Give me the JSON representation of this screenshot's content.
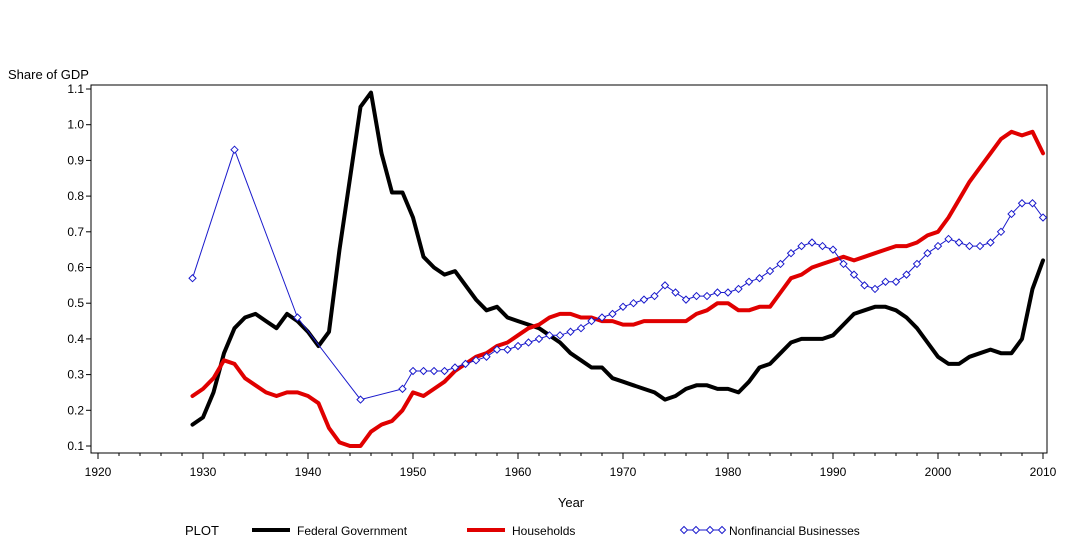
{
  "chart_data": {
    "type": "line",
    "title": "",
    "ylabel": "Share of GDP",
    "xlabel": "Year",
    "xlim": [
      1920,
      2010
    ],
    "ylim": [
      0.1,
      1.1
    ],
    "x_ticks": [
      "1920",
      "1930",
      "1940",
      "1950",
      "1960",
      "1970",
      "1980",
      "1990",
      "2000",
      "2010"
    ],
    "y_ticks": [
      "0.1",
      "0.2",
      "0.3",
      "0.4",
      "0.5",
      "0.6",
      "0.7",
      "0.8",
      "0.9",
      "1.0",
      "1.1"
    ],
    "legend_title": "PLOT",
    "legend_position": "bottom",
    "series": [
      {
        "name": "Federal Government",
        "color": "#000000",
        "marker": "none",
        "points": [
          [
            1929,
            0.16
          ],
          [
            1930,
            0.18
          ],
          [
            1931,
            0.25
          ],
          [
            1932,
            0.36
          ],
          [
            1933,
            0.43
          ],
          [
            1934,
            0.46
          ],
          [
            1935,
            0.47
          ],
          [
            1936,
            0.45
          ],
          [
            1937,
            0.43
          ],
          [
            1938,
            0.47
          ],
          [
            1939,
            0.45
          ],
          [
            1940,
            0.42
          ],
          [
            1941,
            0.38
          ],
          [
            1942,
            0.42
          ],
          [
            1943,
            0.65
          ],
          [
            1944,
            0.85
          ],
          [
            1945,
            1.05
          ],
          [
            1946,
            1.09
          ],
          [
            1947,
            0.92
          ],
          [
            1948,
            0.81
          ],
          [
            1949,
            0.81
          ],
          [
            1950,
            0.74
          ],
          [
            1951,
            0.63
          ],
          [
            1952,
            0.6
          ],
          [
            1953,
            0.58
          ],
          [
            1954,
            0.59
          ],
          [
            1955,
            0.55
          ],
          [
            1956,
            0.51
          ],
          [
            1957,
            0.48
          ],
          [
            1958,
            0.49
          ],
          [
            1959,
            0.46
          ],
          [
            1960,
            0.45
          ],
          [
            1961,
            0.44
          ],
          [
            1962,
            0.43
          ],
          [
            1963,
            0.41
          ],
          [
            1964,
            0.39
          ],
          [
            1965,
            0.36
          ],
          [
            1966,
            0.34
          ],
          [
            1967,
            0.32
          ],
          [
            1968,
            0.32
          ],
          [
            1969,
            0.29
          ],
          [
            1970,
            0.28
          ],
          [
            1971,
            0.27
          ],
          [
            1972,
            0.26
          ],
          [
            1973,
            0.25
          ],
          [
            1974,
            0.23
          ],
          [
            1975,
            0.24
          ],
          [
            1976,
            0.26
          ],
          [
            1977,
            0.27
          ],
          [
            1978,
            0.27
          ],
          [
            1979,
            0.26
          ],
          [
            1980,
            0.26
          ],
          [
            1981,
            0.25
          ],
          [
            1982,
            0.28
          ],
          [
            1983,
            0.32
          ],
          [
            1984,
            0.33
          ],
          [
            1985,
            0.36
          ],
          [
            1986,
            0.39
          ],
          [
            1987,
            0.4
          ],
          [
            1988,
            0.4
          ],
          [
            1989,
            0.4
          ],
          [
            1990,
            0.41
          ],
          [
            1991,
            0.44
          ],
          [
            1992,
            0.47
          ],
          [
            1993,
            0.48
          ],
          [
            1994,
            0.49
          ],
          [
            1995,
            0.49
          ],
          [
            1996,
            0.48
          ],
          [
            1997,
            0.46
          ],
          [
            1998,
            0.43
          ],
          [
            1999,
            0.39
          ],
          [
            2000,
            0.35
          ],
          [
            2001,
            0.33
          ],
          [
            2002,
            0.33
          ],
          [
            2003,
            0.35
          ],
          [
            2004,
            0.36
          ],
          [
            2005,
            0.37
          ],
          [
            2006,
            0.36
          ],
          [
            2007,
            0.36
          ],
          [
            2008,
            0.4
          ],
          [
            2009,
            0.54
          ],
          [
            2010,
            0.62
          ]
        ]
      },
      {
        "name": "Households",
        "color": "#e00000",
        "marker": "none",
        "points": [
          [
            1929,
            0.24
          ],
          [
            1930,
            0.26
          ],
          [
            1931,
            0.29
          ],
          [
            1932,
            0.34
          ],
          [
            1933,
            0.33
          ],
          [
            1934,
            0.29
          ],
          [
            1935,
            0.27
          ],
          [
            1936,
            0.25
          ],
          [
            1937,
            0.24
          ],
          [
            1938,
            0.25
          ],
          [
            1939,
            0.25
          ],
          [
            1940,
            0.24
          ],
          [
            1941,
            0.22
          ],
          [
            1942,
            0.15
          ],
          [
            1943,
            0.11
          ],
          [
            1944,
            0.1
          ],
          [
            1945,
            0.1
          ],
          [
            1946,
            0.14
          ],
          [
            1947,
            0.16
          ],
          [
            1948,
            0.17
          ],
          [
            1949,
            0.2
          ],
          [
            1950,
            0.25
          ],
          [
            1951,
            0.24
          ],
          [
            1952,
            0.26
          ],
          [
            1953,
            0.28
          ],
          [
            1954,
            0.31
          ],
          [
            1955,
            0.33
          ],
          [
            1956,
            0.35
          ],
          [
            1957,
            0.36
          ],
          [
            1958,
            0.38
          ],
          [
            1959,
            0.39
          ],
          [
            1960,
            0.41
          ],
          [
            1961,
            0.43
          ],
          [
            1962,
            0.44
          ],
          [
            1963,
            0.46
          ],
          [
            1964,
            0.47
          ],
          [
            1965,
            0.47
          ],
          [
            1966,
            0.46
          ],
          [
            1967,
            0.46
          ],
          [
            1968,
            0.45
          ],
          [
            1969,
            0.45
          ],
          [
            1970,
            0.44
          ],
          [
            1971,
            0.44
          ],
          [
            1972,
            0.45
          ],
          [
            1973,
            0.45
          ],
          [
            1974,
            0.45
          ],
          [
            1975,
            0.45
          ],
          [
            1976,
            0.45
          ],
          [
            1977,
            0.47
          ],
          [
            1978,
            0.48
          ],
          [
            1979,
            0.5
          ],
          [
            1980,
            0.5
          ],
          [
            1981,
            0.48
          ],
          [
            1982,
            0.48
          ],
          [
            1983,
            0.49
          ],
          [
            1984,
            0.49
          ],
          [
            1985,
            0.53
          ],
          [
            1986,
            0.57
          ],
          [
            1987,
            0.58
          ],
          [
            1988,
            0.6
          ],
          [
            1989,
            0.61
          ],
          [
            1990,
            0.62
          ],
          [
            1991,
            0.63
          ],
          [
            1992,
            0.62
          ],
          [
            1993,
            0.63
          ],
          [
            1994,
            0.64
          ],
          [
            1995,
            0.65
          ],
          [
            1996,
            0.66
          ],
          [
            1997,
            0.66
          ],
          [
            1998,
            0.67
          ],
          [
            1999,
            0.69
          ],
          [
            2000,
            0.7
          ],
          [
            2001,
            0.74
          ],
          [
            2002,
            0.79
          ],
          [
            2003,
            0.84
          ],
          [
            2004,
            0.88
          ],
          [
            2005,
            0.92
          ],
          [
            2006,
            0.96
          ],
          [
            2007,
            0.98
          ],
          [
            2008,
            0.97
          ],
          [
            2009,
            0.98
          ],
          [
            2010,
            0.92
          ]
        ]
      },
      {
        "name": "Nonfinancial Businesses",
        "color": "#1a1acc",
        "marker": "diamond",
        "points": [
          [
            1929,
            0.57
          ],
          [
            1933,
            0.93
          ],
          [
            1939,
            0.46
          ],
          [
            1945,
            0.23
          ],
          [
            1949,
            0.26
          ],
          [
            1950,
            0.31
          ],
          [
            1951,
            0.31
          ],
          [
            1952,
            0.31
          ],
          [
            1953,
            0.31
          ],
          [
            1954,
            0.32
          ],
          [
            1955,
            0.33
          ],
          [
            1956,
            0.34
          ],
          [
            1957,
            0.35
          ],
          [
            1958,
            0.37
          ],
          [
            1959,
            0.37
          ],
          [
            1960,
            0.38
          ],
          [
            1961,
            0.39
          ],
          [
            1962,
            0.4
          ],
          [
            1963,
            0.41
          ],
          [
            1964,
            0.41
          ],
          [
            1965,
            0.42
          ],
          [
            1966,
            0.43
          ],
          [
            1967,
            0.45
          ],
          [
            1968,
            0.46
          ],
          [
            1969,
            0.47
          ],
          [
            1970,
            0.49
          ],
          [
            1971,
            0.5
          ],
          [
            1972,
            0.51
          ],
          [
            1973,
            0.52
          ],
          [
            1974,
            0.55
          ],
          [
            1975,
            0.53
          ],
          [
            1976,
            0.51
          ],
          [
            1977,
            0.52
          ],
          [
            1978,
            0.52
          ],
          [
            1979,
            0.53
          ],
          [
            1980,
            0.53
          ],
          [
            1981,
            0.54
          ],
          [
            1982,
            0.56
          ],
          [
            1983,
            0.57
          ],
          [
            1984,
            0.59
          ],
          [
            1985,
            0.61
          ],
          [
            1986,
            0.64
          ],
          [
            1987,
            0.66
          ],
          [
            1988,
            0.67
          ],
          [
            1989,
            0.66
          ],
          [
            1990,
            0.65
          ],
          [
            1991,
            0.61
          ],
          [
            1992,
            0.58
          ],
          [
            1993,
            0.55
          ],
          [
            1994,
            0.54
          ],
          [
            1995,
            0.56
          ],
          [
            1996,
            0.56
          ],
          [
            1997,
            0.58
          ],
          [
            1998,
            0.61
          ],
          [
            1999,
            0.64
          ],
          [
            2000,
            0.66
          ],
          [
            2001,
            0.68
          ],
          [
            2002,
            0.67
          ],
          [
            2003,
            0.66
          ],
          [
            2004,
            0.66
          ],
          [
            2005,
            0.67
          ],
          [
            2006,
            0.7
          ],
          [
            2007,
            0.75
          ],
          [
            2008,
            0.78
          ],
          [
            2009,
            0.78
          ],
          [
            2010,
            0.74
          ]
        ]
      }
    ]
  }
}
